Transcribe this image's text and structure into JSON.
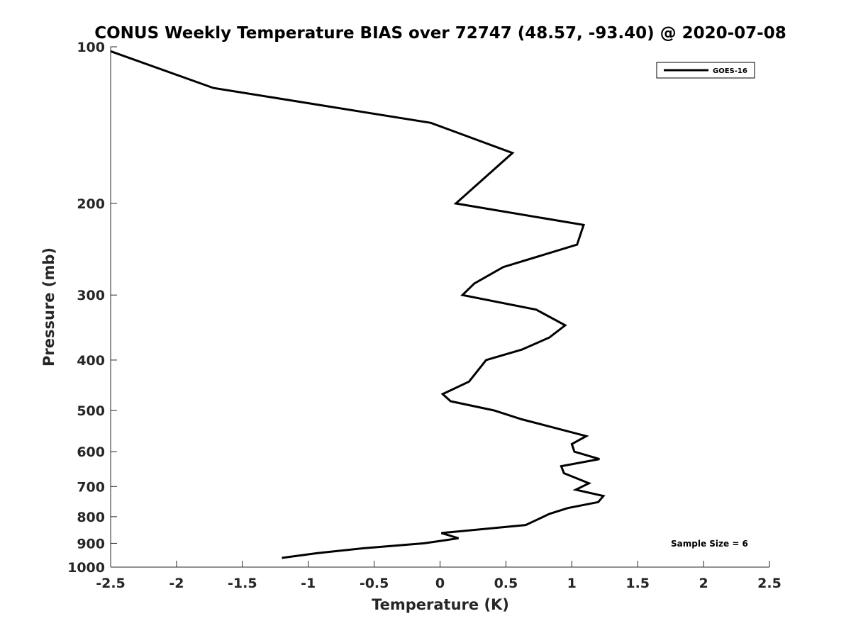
{
  "chart_data": {
    "type": "line",
    "title": "CONUS Weekly Temperature BIAS over 72747 (48.57, -93.40) @ 2020-07-08",
    "xlabel": "Temperature (K)",
    "ylabel": "Pressure (mb)",
    "xlim": [
      -2.5,
      2.5
    ],
    "ylim": [
      1000,
      100
    ],
    "yscale": "log",
    "yaxis_reversed": true,
    "xticks": [
      -2.5,
      -2,
      -1.5,
      -1,
      -0.5,
      0,
      0.5,
      1,
      1.5,
      2,
      2.5
    ],
    "xtick_labels": [
      "-2.5",
      "-2",
      "-1.5",
      "-1",
      "-0.5",
      "0",
      "0.5",
      "1",
      "1.5",
      "2",
      "2.5"
    ],
    "yticks": [
      100,
      200,
      300,
      400,
      500,
      600,
      700,
      800,
      900,
      1000
    ],
    "ytick_labels": [
      "100",
      "200",
      "300",
      "400",
      "500",
      "600",
      "700",
      "800",
      "900",
      "1000"
    ],
    "grid": false,
    "legend_position": "top-right",
    "series": [
      {
        "name": "GOES-16",
        "color": "#000000",
        "points": [
          {
            "x": -2.5,
            "y": 102
          },
          {
            "x": -1.72,
            "y": 120
          },
          {
            "x": -0.07,
            "y": 140
          },
          {
            "x": 0.55,
            "y": 160
          },
          {
            "x": 0.12,
            "y": 200
          },
          {
            "x": 1.09,
            "y": 220
          },
          {
            "x": 1.04,
            "y": 240
          },
          {
            "x": 0.48,
            "y": 265
          },
          {
            "x": 0.26,
            "y": 285
          },
          {
            "x": 0.17,
            "y": 300
          },
          {
            "x": 0.73,
            "y": 320
          },
          {
            "x": 0.95,
            "y": 343
          },
          {
            "x": 0.83,
            "y": 362
          },
          {
            "x": 0.62,
            "y": 382
          },
          {
            "x": 0.35,
            "y": 400
          },
          {
            "x": 0.22,
            "y": 440
          },
          {
            "x": 0.02,
            "y": 465
          },
          {
            "x": 0.08,
            "y": 480
          },
          {
            "x": 0.41,
            "y": 500
          },
          {
            "x": 0.62,
            "y": 520
          },
          {
            "x": 1.11,
            "y": 560
          },
          {
            "x": 1.0,
            "y": 580
          },
          {
            "x": 1.02,
            "y": 600
          },
          {
            "x": 1.21,
            "y": 620
          },
          {
            "x": 0.92,
            "y": 640
          },
          {
            "x": 0.94,
            "y": 660
          },
          {
            "x": 1.13,
            "y": 690
          },
          {
            "x": 1.03,
            "y": 710
          },
          {
            "x": 1.24,
            "y": 730
          },
          {
            "x": 1.2,
            "y": 750
          },
          {
            "x": 0.97,
            "y": 770
          },
          {
            "x": 0.83,
            "y": 790
          },
          {
            "x": 0.74,
            "y": 810
          },
          {
            "x": 0.65,
            "y": 830
          },
          {
            "x": 0.01,
            "y": 860
          },
          {
            "x": 0.14,
            "y": 880
          },
          {
            "x": -0.12,
            "y": 900
          },
          {
            "x": -0.58,
            "y": 920
          },
          {
            "x": -0.93,
            "y": 940
          },
          {
            "x": -1.2,
            "y": 960
          }
        ]
      }
    ],
    "annotations": [
      {
        "text": "Sample Size = 6"
      }
    ]
  }
}
